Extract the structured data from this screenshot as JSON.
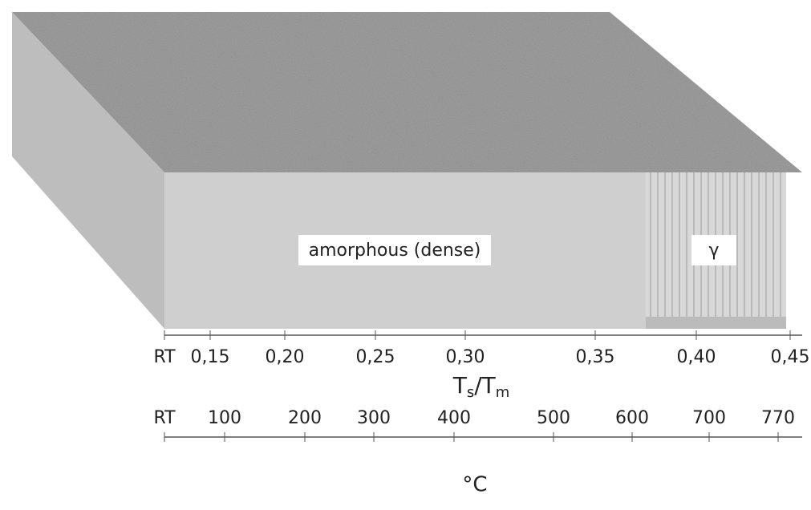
{
  "zones": [
    {
      "label": "amorphous (dense)"
    },
    {
      "label": "γ"
    }
  ],
  "top_axis": {
    "ticks": [
      "RT",
      "0,15",
      "0,20",
      "0,25",
      "0,30",
      "0,35",
      "0,40",
      "0,45"
    ],
    "label": {
      "numerator": "T",
      "numerator_sub": "s",
      "separator": "/",
      "denominator": "T",
      "denominator_sub": "m"
    }
  },
  "bottom_axis": {
    "ticks": [
      "RT",
      "100",
      "200",
      "300",
      "400",
      "500",
      "600",
      "700",
      "770"
    ],
    "label": "°C"
  }
}
